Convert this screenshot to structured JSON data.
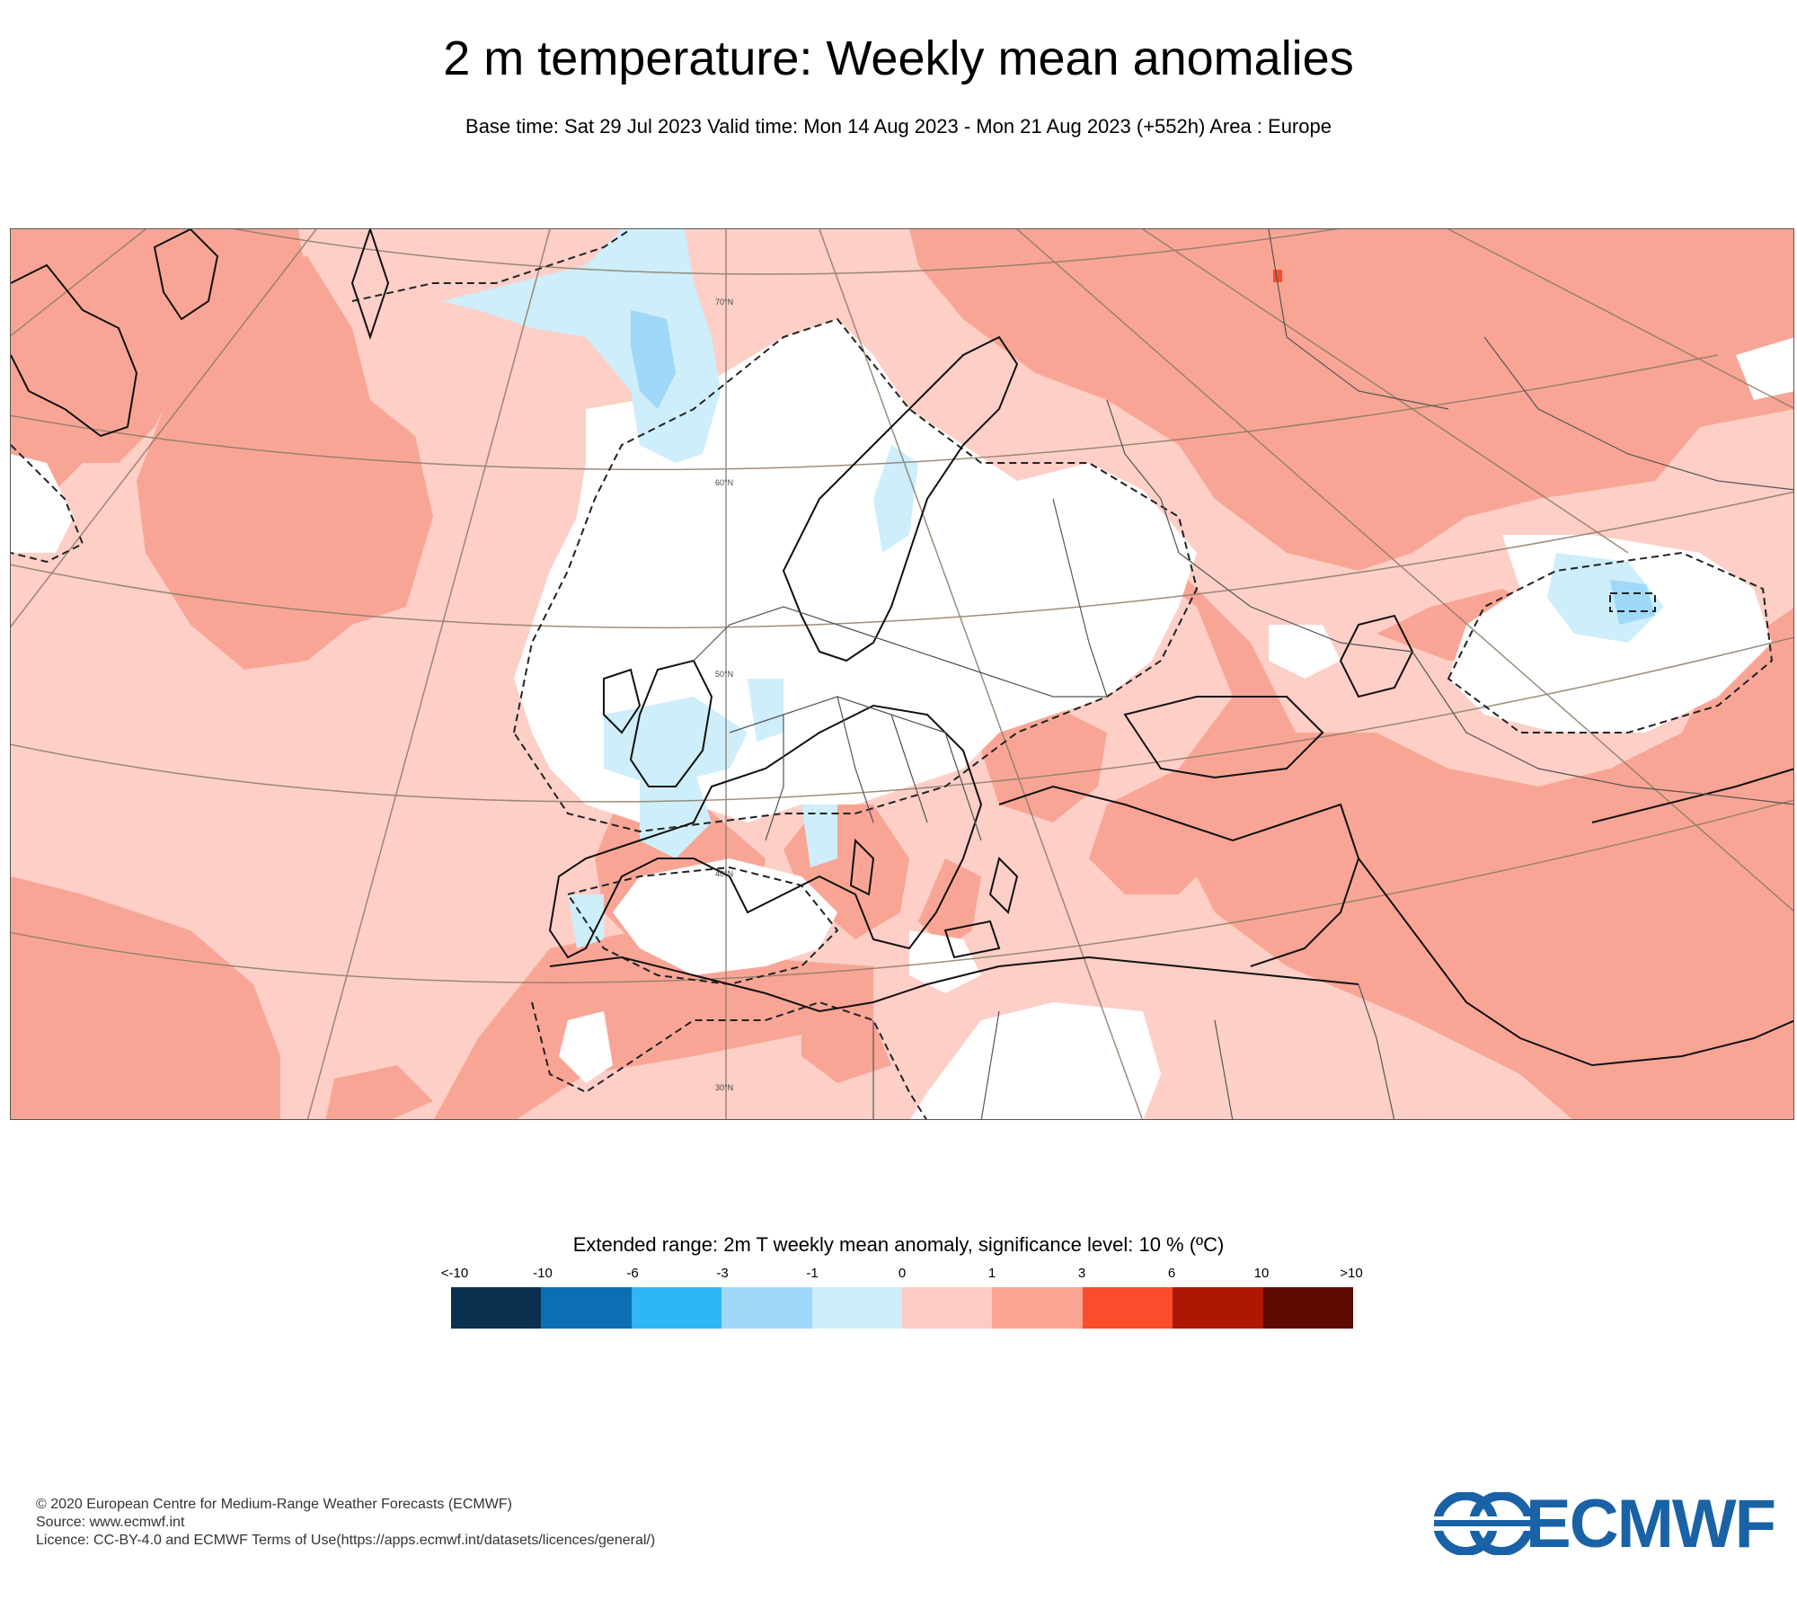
{
  "title": "2 m temperature: Weekly mean anomalies",
  "subtitle": "Base time: Sat 29 Jul 2023 Valid time: Mon 14 Aug 2023 - Mon 21 Aug 2023 (+552h) Area : Europe",
  "map": {
    "lat_labels": [
      "70°N",
      "60°N",
      "50°N",
      "40°N",
      "30°N"
    ]
  },
  "legend": {
    "title": "Extended range: 2m T weekly mean anomaly, significance level: 10 % (ºC)",
    "ticks": [
      "<-10",
      "-10",
      "-6",
      "-3",
      "-1",
      "0",
      "1",
      "3",
      "6",
      "10",
      ">10"
    ],
    "colors": [
      "#0b3050",
      "#0d6fb3",
      "#2fb6f4",
      "#9fd8f8",
      "#cdeefa",
      "#fdcbc2",
      "#fba494",
      "#fb4c2c",
      "#ad1704",
      "#5d0a02"
    ]
  },
  "footer": {
    "copyright": "© 2020 European Centre for Medium-Range Weather Forecasts (ECMWF)",
    "source": "Source: www.ecmwf.int",
    "licence": "Licence: CC-BY-4.0 and ECMWF Terms of Use(https://apps.ecmwf.int/datasets/licences/general/)"
  },
  "logo": {
    "text": "ECMWF",
    "color": "#1a62a6"
  }
}
